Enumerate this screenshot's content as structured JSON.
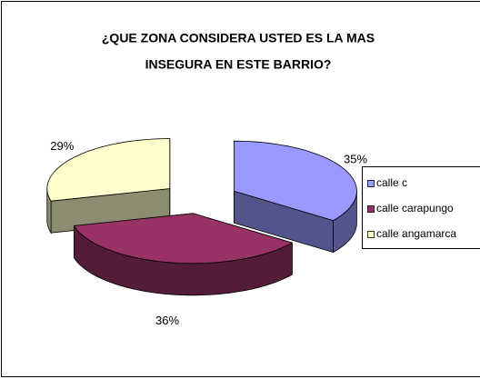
{
  "chart_data": {
    "type": "pie3d",
    "title": [
      "¿QUE ZONA CONSIDERA USTED ES LA MAS",
      "INSEGURA EN ESTE BARRIO?"
    ],
    "categories": [
      "calle c",
      "calle carapungo",
      "calle angamarca"
    ],
    "values": [
      35,
      36,
      29
    ],
    "value_labels": [
      "35%",
      "36%",
      "29%"
    ],
    "colors": [
      "#9999FF",
      "#993366",
      "#FFFFCC"
    ],
    "legend": "right"
  }
}
